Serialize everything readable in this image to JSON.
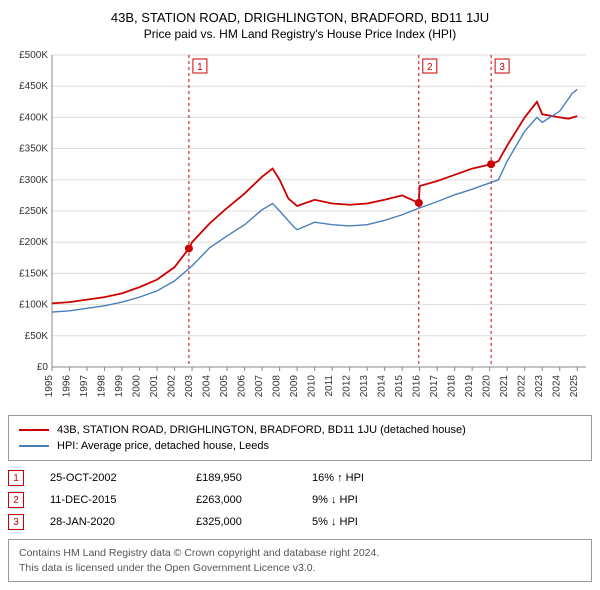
{
  "title_main": "43B, STATION ROAD, DRIGHLINGTON, BRADFORD, BD11 1JU",
  "title_sub": "Price paid vs. HM Land Registry's House Price Index (HPI)",
  "chart": {
    "type": "line",
    "background_color": "#ffffff",
    "grid_color": "#dddddd",
    "axis_color": "#888888",
    "tick_font_size": 10,
    "x_years": [
      1995,
      1996,
      1997,
      1998,
      1999,
      2000,
      2001,
      2002,
      2003,
      2004,
      2005,
      2006,
      2007,
      2008,
      2009,
      2010,
      2011,
      2012,
      2013,
      2014,
      2015,
      2016,
      2017,
      2018,
      2019,
      2020,
      2021,
      2022,
      2023,
      2024,
      2025
    ],
    "y_ticks": [
      0,
      50000,
      100000,
      150000,
      200000,
      250000,
      300000,
      350000,
      400000,
      450000,
      500000
    ],
    "y_tick_labels": [
      "£0",
      "£50K",
      "£100K",
      "£150K",
      "£200K",
      "£250K",
      "£300K",
      "£350K",
      "£400K",
      "£450K",
      "£500K"
    ],
    "ylim": [
      0,
      500000
    ],
    "xlim": [
      1995,
      2025.5
    ],
    "series": [
      {
        "name": "property",
        "color": "#cc0000",
        "width": 1.8,
        "points": [
          [
            1995,
            102000
          ],
          [
            1996,
            104000
          ],
          [
            1997,
            108000
          ],
          [
            1998,
            112000
          ],
          [
            1999,
            118000
          ],
          [
            2000,
            128000
          ],
          [
            2001,
            140000
          ],
          [
            2002,
            160000
          ],
          [
            2002.82,
            189950
          ],
          [
            2003,
            200000
          ],
          [
            2004,
            230000
          ],
          [
            2005,
            255000
          ],
          [
            2006,
            278000
          ],
          [
            2007,
            305000
          ],
          [
            2007.6,
            318000
          ],
          [
            2008,
            300000
          ],
          [
            2008.5,
            270000
          ],
          [
            2009,
            258000
          ],
          [
            2010,
            268000
          ],
          [
            2011,
            262000
          ],
          [
            2012,
            260000
          ],
          [
            2013,
            262000
          ],
          [
            2014,
            268000
          ],
          [
            2015,
            275000
          ],
          [
            2015.95,
            263000
          ],
          [
            2016,
            290000
          ],
          [
            2017,
            298000
          ],
          [
            2018,
            308000
          ],
          [
            2019,
            318000
          ],
          [
            2020.08,
            325000
          ],
          [
            2020.5,
            330000
          ],
          [
            2021,
            355000
          ],
          [
            2022,
            400000
          ],
          [
            2022.7,
            425000
          ],
          [
            2023,
            405000
          ],
          [
            2024,
            400000
          ],
          [
            2024.5,
            398000
          ],
          [
            2025,
            402000
          ]
        ]
      },
      {
        "name": "hpi",
        "color": "#4a7ebb",
        "width": 1.4,
        "points": [
          [
            1995,
            88000
          ],
          [
            1996,
            90000
          ],
          [
            1997,
            94000
          ],
          [
            1998,
            98000
          ],
          [
            1999,
            104000
          ],
          [
            2000,
            112000
          ],
          [
            2001,
            122000
          ],
          [
            2002,
            138000
          ],
          [
            2003,
            162000
          ],
          [
            2004,
            191000
          ],
          [
            2005,
            210000
          ],
          [
            2006,
            228000
          ],
          [
            2007,
            252000
          ],
          [
            2007.6,
            262000
          ],
          [
            2008,
            250000
          ],
          [
            2008.8,
            225000
          ],
          [
            2009,
            220000
          ],
          [
            2010,
            232000
          ],
          [
            2011,
            228000
          ],
          [
            2012,
            226000
          ],
          [
            2013,
            228000
          ],
          [
            2014,
            235000
          ],
          [
            2015,
            244000
          ],
          [
            2016,
            255000
          ],
          [
            2017,
            265000
          ],
          [
            2018,
            276000
          ],
          [
            2019,
            285000
          ],
          [
            2020,
            295000
          ],
          [
            2020.5,
            300000
          ],
          [
            2021,
            330000
          ],
          [
            2022,
            378000
          ],
          [
            2022.7,
            400000
          ],
          [
            2023,
            392000
          ],
          [
            2024,
            410000
          ],
          [
            2024.7,
            438000
          ],
          [
            2025,
            445000
          ]
        ]
      }
    ],
    "markers": [
      {
        "num": "1",
        "x": 2002.82,
        "y": 189950,
        "color": "#cc0000"
      },
      {
        "num": "2",
        "x": 2015.95,
        "y": 263000,
        "color": "#cc0000"
      },
      {
        "num": "3",
        "x": 2020.08,
        "y": 325000,
        "color": "#cc0000"
      }
    ],
    "marker_line_color": "#cc0000",
    "marker_line_dash": "3,3"
  },
  "legend": {
    "items": [
      {
        "color": "#cc0000",
        "label": "43B, STATION ROAD, DRIGHLINGTON, BRADFORD, BD11 1JU (detached house)"
      },
      {
        "color": "#4a7ebb",
        "label": "HPI: Average price, detached house, Leeds"
      }
    ]
  },
  "marker_rows": [
    {
      "num": "1",
      "date": "25-OCT-2002",
      "price": "£189,950",
      "pct": "16% ↑ HPI"
    },
    {
      "num": "2",
      "date": "11-DEC-2015",
      "price": "£263,000",
      "pct": "9% ↓ HPI"
    },
    {
      "num": "3",
      "date": "28-JAN-2020",
      "price": "£325,000",
      "pct": "5% ↓ HPI"
    }
  ],
  "attribution_line1": "Contains HM Land Registry data © Crown copyright and database right 2024.",
  "attribution_line2": "This data is licensed under the Open Government Licence v3.0."
}
